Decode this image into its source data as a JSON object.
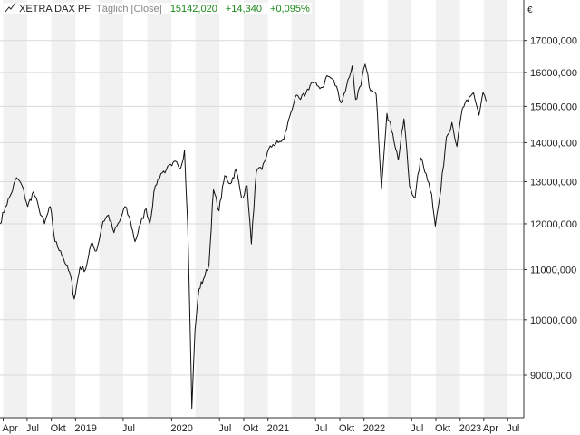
{
  "header": {
    "instrument": "XETRA DAX PF",
    "interval": "Täglich [Close]",
    "last_value": "15142,020",
    "change": "+14,340",
    "change_pct": "+0,095%"
  },
  "colors": {
    "line": "#111111",
    "band": "#f1f1f1",
    "grid": "#d9d9d9",
    "positive": "#1b8a1b"
  },
  "chart_data": {
    "type": "line",
    "y_unit_label": "€",
    "y_scale": "log",
    "ylim": [
      8300,
      17800
    ],
    "y_ticks": [
      {
        "value": 9000,
        "label": "9000,000"
      },
      {
        "value": 10000,
        "label": "10000,000"
      },
      {
        "value": 11000,
        "label": "11000,000"
      },
      {
        "value": 12000,
        "label": "12000,000"
      },
      {
        "value": 13000,
        "label": "13000,000"
      },
      {
        "value": 14000,
        "label": "14000,000"
      },
      {
        "value": 15000,
        "label": "15000,000"
      },
      {
        "value": 16000,
        "label": "16000,000"
      },
      {
        "value": 17000,
        "label": "17000,000"
      }
    ],
    "x_range": [
      "2018-03-20",
      "2023-08-31"
    ],
    "x_ticks": [
      {
        "date": "2018-04-01",
        "label": "Apr"
      },
      {
        "date": "2018-07-01",
        "label": "Jul"
      },
      {
        "date": "2018-10-01",
        "label": "Okt"
      },
      {
        "date": "2019-01-01",
        "label": "2019"
      },
      {
        "date": "2019-07-01",
        "label": "Jul"
      },
      {
        "date": "2020-01-01",
        "label": "2020"
      },
      {
        "date": "2020-07-01",
        "label": "Jul"
      },
      {
        "date": "2020-10-01",
        "label": "Okt"
      },
      {
        "date": "2021-01-01",
        "label": "2021"
      },
      {
        "date": "2021-07-01",
        "label": "Jul"
      },
      {
        "date": "2021-10-01",
        "label": "Okt"
      },
      {
        "date": "2022-01-01",
        "label": "2022"
      },
      {
        "date": "2022-07-01",
        "label": "Jul"
      },
      {
        "date": "2022-10-01",
        "label": "Okt"
      },
      {
        "date": "2023-01-01",
        "label": "2023"
      },
      {
        "date": "2023-04-01",
        "label": "Apr"
      },
      {
        "date": "2023-07-01",
        "label": "Jul"
      }
    ],
    "bands": [
      [
        "2018-04-01",
        "2018-07-01"
      ],
      [
        "2018-10-01",
        "2019-01-01"
      ],
      [
        "2019-04-01",
        "2019-07-01"
      ],
      [
        "2019-10-01",
        "2020-01-01"
      ],
      [
        "2020-04-01",
        "2020-07-01"
      ],
      [
        "2020-10-01",
        "2021-01-01"
      ],
      [
        "2021-04-01",
        "2021-07-01"
      ],
      [
        "2021-10-01",
        "2022-01-01"
      ],
      [
        "2022-04-01",
        "2022-07-01"
      ],
      [
        "2022-10-01",
        "2023-01-01"
      ],
      [
        "2023-04-01",
        "2023-07-01"
      ]
    ],
    "series": [
      {
        "points": [
          [
            "2018-03-20",
            12000
          ],
          [
            "2018-04-10",
            12400
          ],
          [
            "2018-05-01",
            12700
          ],
          [
            "2018-05-22",
            13100
          ],
          [
            "2018-06-12",
            12900
          ],
          [
            "2018-07-03",
            12400
          ],
          [
            "2018-07-25",
            12750
          ],
          [
            "2018-08-15",
            12350
          ],
          [
            "2018-09-05",
            12000
          ],
          [
            "2018-09-27",
            12400
          ],
          [
            "2018-10-15",
            11600
          ],
          [
            "2018-11-05",
            11400
          ],
          [
            "2018-11-26",
            11100
          ],
          [
            "2018-12-14",
            10850
          ],
          [
            "2018-12-27",
            10400
          ],
          [
            "2019-01-18",
            11050
          ],
          [
            "2019-02-08",
            11000
          ],
          [
            "2019-03-01",
            11550
          ],
          [
            "2019-03-22",
            11400
          ],
          [
            "2019-04-15",
            12050
          ],
          [
            "2019-05-06",
            12200
          ],
          [
            "2019-05-27",
            11800
          ],
          [
            "2019-06-17",
            12050
          ],
          [
            "2019-07-08",
            12400
          ],
          [
            "2019-07-29",
            12050
          ],
          [
            "2019-08-15",
            11600
          ],
          [
            "2019-09-05",
            12000
          ],
          [
            "2019-09-26",
            12350
          ],
          [
            "2019-10-10",
            12000
          ],
          [
            "2019-10-31",
            12900
          ],
          [
            "2019-11-21",
            13200
          ],
          [
            "2019-12-12",
            13300
          ],
          [
            "2020-01-02",
            13400
          ],
          [
            "2020-01-20",
            13500
          ],
          [
            "2020-02-05",
            13350
          ],
          [
            "2020-02-19",
            13800
          ],
          [
            "2020-03-02",
            12000
          ],
          [
            "2020-03-12",
            9700
          ],
          [
            "2020-03-18",
            8450
          ],
          [
            "2020-03-30",
            9800
          ],
          [
            "2020-04-14",
            10600
          ],
          [
            "2020-05-01",
            10800
          ],
          [
            "2020-05-22",
            11100
          ],
          [
            "2020-06-08",
            12800
          ],
          [
            "2020-06-29",
            12300
          ],
          [
            "2020-07-21",
            13150
          ],
          [
            "2020-08-11",
            12950
          ],
          [
            "2020-09-02",
            13300
          ],
          [
            "2020-09-23",
            12600
          ],
          [
            "2020-10-14",
            12900
          ],
          [
            "2020-10-30",
            11550
          ],
          [
            "2020-11-18",
            13250
          ],
          [
            "2020-12-09",
            13300
          ],
          [
            "2020-12-30",
            13750
          ],
          [
            "2021-01-20",
            13950
          ],
          [
            "2021-02-10",
            14000
          ],
          [
            "2021-03-03",
            14100
          ],
          [
            "2021-03-24",
            14700
          ],
          [
            "2021-04-14",
            15250
          ],
          [
            "2021-05-05",
            15200
          ],
          [
            "2021-05-26",
            15400
          ],
          [
            "2021-06-16",
            15700
          ],
          [
            "2021-07-07",
            15600
          ],
          [
            "2021-07-28",
            15550
          ],
          [
            "2021-08-13",
            15900
          ],
          [
            "2021-09-03",
            15800
          ],
          [
            "2021-09-24",
            15450
          ],
          [
            "2021-10-06",
            15100
          ],
          [
            "2021-10-27",
            15600
          ],
          [
            "2021-11-17",
            16200
          ],
          [
            "2021-11-30",
            15200
          ],
          [
            "2021-12-20",
            15600
          ],
          [
            "2022-01-05",
            16250
          ],
          [
            "2022-01-26",
            15450
          ],
          [
            "2022-02-16",
            15350
          ],
          [
            "2022-03-08",
            12850
          ],
          [
            "2022-03-29",
            14800
          ],
          [
            "2022-04-20",
            14250
          ],
          [
            "2022-05-11",
            13550
          ],
          [
            "2022-06-02",
            14650
          ],
          [
            "2022-06-23",
            12900
          ],
          [
            "2022-07-14",
            12600
          ],
          [
            "2022-08-04",
            13600
          ],
          [
            "2022-08-25",
            13200
          ],
          [
            "2022-09-15",
            12700
          ],
          [
            "2022-09-29",
            11950
          ],
          [
            "2022-10-20",
            12800
          ],
          [
            "2022-11-10",
            14150
          ],
          [
            "2022-12-01",
            14550
          ],
          [
            "2022-12-20",
            13900
          ],
          [
            "2023-01-10",
            14950
          ],
          [
            "2023-01-31",
            15150
          ],
          [
            "2023-02-21",
            15400
          ],
          [
            "2023-03-14",
            14750
          ],
          [
            "2023-03-29",
            15400
          ],
          [
            "2023-04-10",
            15150
          ]
        ]
      }
    ]
  }
}
